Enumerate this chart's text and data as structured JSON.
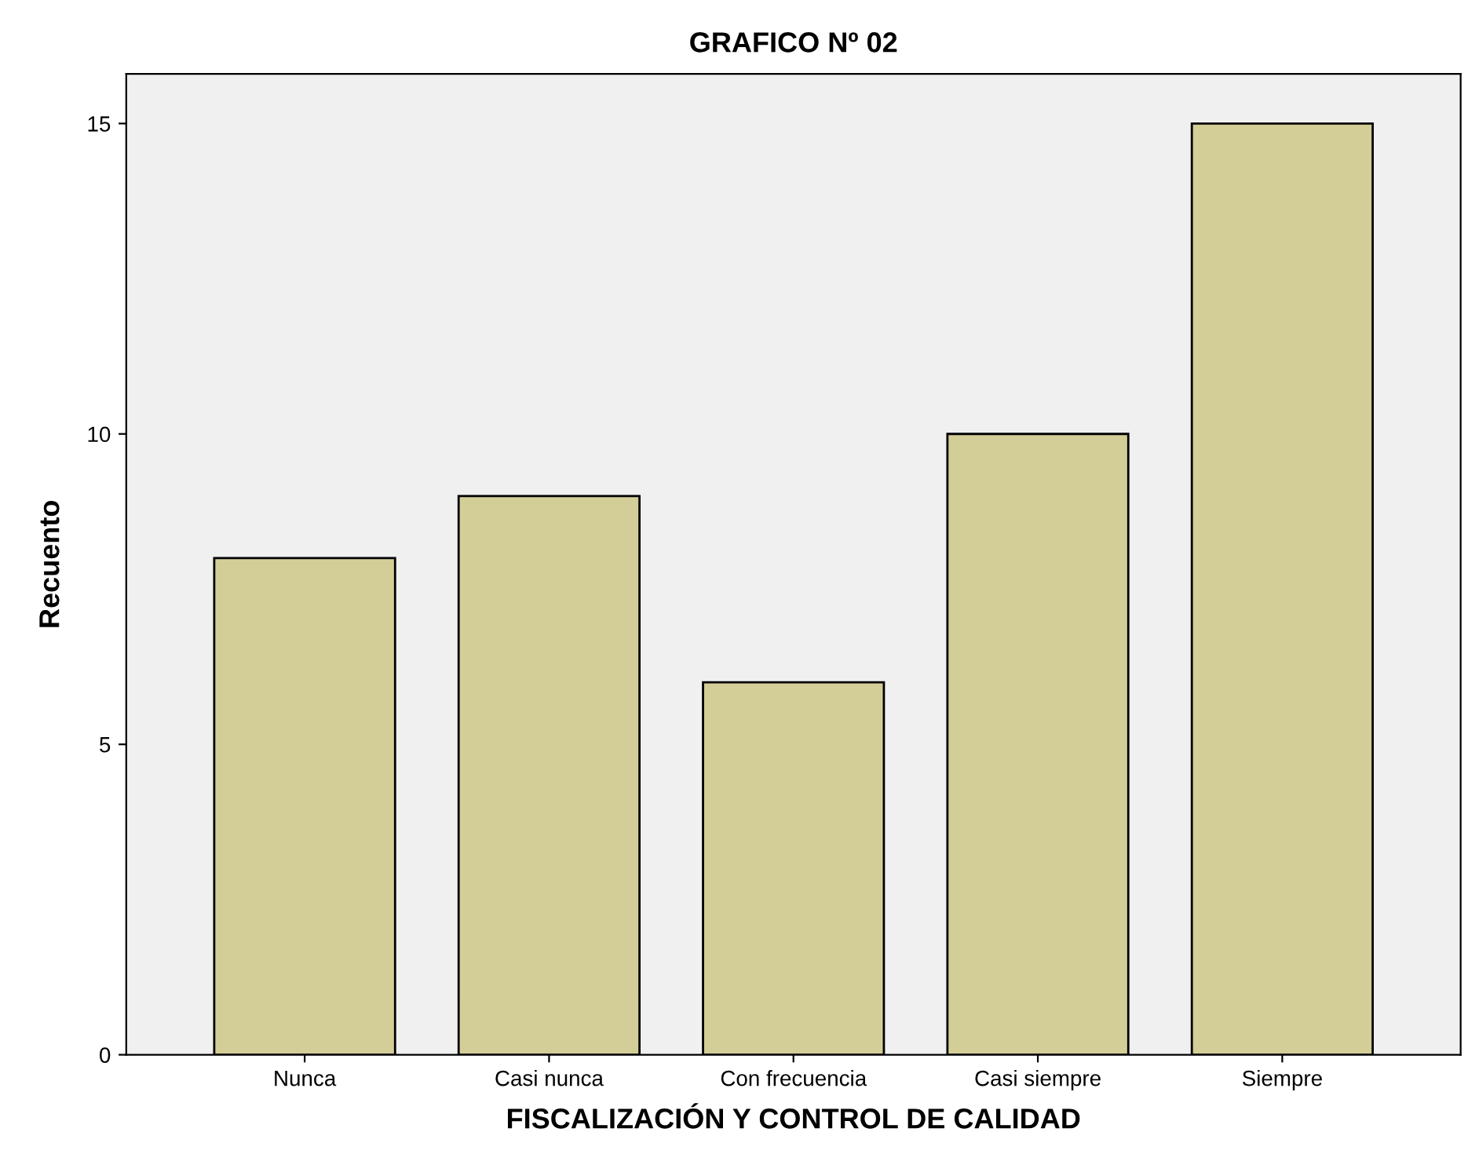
{
  "chart_data": {
    "type": "bar",
    "title": "GRAFICO Nº 02",
    "xlabel": "FISCALIZACIÓN Y CONTROL DE CALIDAD",
    "ylabel": "Recuento",
    "categories": [
      "Nunca",
      "Casi nunca",
      "Con frecuencia",
      "Casi siempre",
      "Siempre"
    ],
    "values": [
      8,
      9,
      6,
      10,
      15
    ],
    "color": "#d3cd97",
    "ylim": [
      0,
      15.8
    ],
    "yticks": [
      0,
      5,
      10,
      15
    ],
    "grid": false
  }
}
